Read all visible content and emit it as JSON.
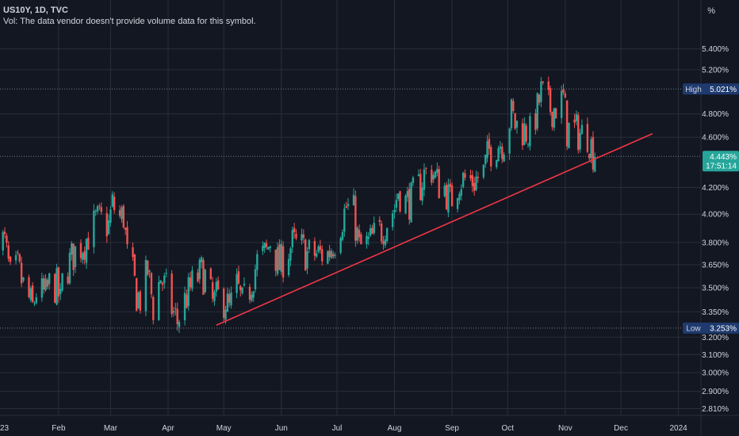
{
  "legend": {
    "symbol": "US10Y, 1D, TVC",
    "volume_note": "Vol: The data vendor doesn't provide volume data for this symbol."
  },
  "axis": {
    "unit": "%"
  },
  "colors": {
    "background": "#131722",
    "grid": "#2a2e39",
    "up": "#26a69a",
    "down": "#ef5350",
    "trendline": "#f23645",
    "badge_dark": "#1e3a6e",
    "badge_current": "#26a69a"
  },
  "chart_data": {
    "type": "candlestick",
    "symbol": "US10Y",
    "interval": "1D",
    "source": "TVC",
    "y_scale": "log",
    "ylim": [
      2.78,
      5.62
    ],
    "y_ticks": [
      "5.400%",
      "5.200%",
      "4.800%",
      "4.600%",
      "4.200%",
      "4.000%",
      "3.800%",
      "3.650%",
      "3.500%",
      "3.350%",
      "3.200%",
      "3.100%",
      "3.000%",
      "2.900%",
      "2.810%"
    ],
    "x_range": [
      "2022-12-28",
      "2024-01-08"
    ],
    "x_ticks": [
      {
        "label": "23",
        "date": "2022-12-30"
      },
      {
        "label": "Feb",
        "date": "2023-02-01"
      },
      {
        "label": "Mar",
        "date": "2023-03-01"
      },
      {
        "label": "Apr",
        "date": "2023-04-01"
      },
      {
        "label": "May",
        "date": "2023-05-01"
      },
      {
        "label": "Jun",
        "date": "2023-06-01"
      },
      {
        "label": "Jul",
        "date": "2023-07-01"
      },
      {
        "label": "Aug",
        "date": "2023-08-01"
      },
      {
        "label": "Sep",
        "date": "2023-09-01"
      },
      {
        "label": "Oct",
        "date": "2023-10-01"
      },
      {
        "label": "Nov",
        "date": "2023-11-01"
      },
      {
        "label": "Dec",
        "date": "2023-12-01"
      },
      {
        "label": "2024",
        "date": "2024-01-01"
      }
    ],
    "closes": [
      [
        "2022-12-30",
        3.88
      ],
      [
        "2023-01-03",
        3.79
      ],
      [
        "2023-01-06",
        3.56
      ],
      [
        "2023-01-10",
        3.62
      ],
      [
        "2023-01-13",
        3.51
      ],
      [
        "2023-01-18",
        3.37
      ],
      [
        "2023-01-20",
        3.48
      ],
      [
        "2023-01-25",
        3.45
      ],
      [
        "2023-01-27",
        3.52
      ],
      [
        "2023-01-31",
        3.51
      ],
      [
        "2023-02-02",
        3.4
      ],
      [
        "2023-02-03",
        3.53
      ],
      [
        "2023-02-07",
        3.67
      ],
      [
        "2023-02-10",
        3.74
      ],
      [
        "2023-02-15",
        3.8
      ],
      [
        "2023-02-21",
        3.95
      ],
      [
        "2023-02-24",
        3.95
      ],
      [
        "2023-02-28",
        3.92
      ],
      [
        "2023-03-02",
        4.07
      ],
      [
        "2023-03-06",
        3.97
      ],
      [
        "2023-03-08",
        3.99
      ],
      [
        "2023-03-10",
        3.7
      ],
      [
        "2023-03-13",
        3.58
      ],
      [
        "2023-03-15",
        3.46
      ],
      [
        "2023-03-17",
        3.43
      ],
      [
        "2023-03-21",
        3.61
      ],
      [
        "2023-03-24",
        3.38
      ],
      [
        "2023-03-28",
        3.57
      ],
      [
        "2023-03-31",
        3.48
      ],
      [
        "2023-04-04",
        3.34
      ],
      [
        "2023-04-06",
        3.29
      ],
      [
        "2023-04-10",
        3.42
      ],
      [
        "2023-04-14",
        3.52
      ],
      [
        "2023-04-19",
        3.6
      ],
      [
        "2023-04-21",
        3.57
      ],
      [
        "2023-04-25",
        3.4
      ],
      [
        "2023-04-28",
        3.44
      ],
      [
        "2023-05-02",
        3.42
      ],
      [
        "2023-05-04",
        3.36
      ],
      [
        "2023-05-08",
        3.51
      ],
      [
        "2023-05-11",
        3.39
      ],
      [
        "2023-05-15",
        3.5
      ],
      [
        "2023-05-19",
        3.67
      ],
      [
        "2023-05-24",
        3.73
      ],
      [
        "2023-05-26",
        3.81
      ],
      [
        "2023-05-31",
        3.64
      ],
      [
        "2023-06-02",
        3.69
      ],
      [
        "2023-06-07",
        3.79
      ],
      [
        "2023-06-12",
        3.76
      ],
      [
        "2023-06-15",
        3.72
      ],
      [
        "2023-06-21",
        3.72
      ],
      [
        "2023-06-26",
        3.72
      ],
      [
        "2023-06-30",
        3.82
      ],
      [
        "2023-07-06",
        4.05
      ],
      [
        "2023-07-10",
        4.01
      ],
      [
        "2023-07-13",
        3.76
      ],
      [
        "2023-07-18",
        3.79
      ],
      [
        "2023-07-21",
        3.84
      ],
      [
        "2023-07-25",
        3.89
      ],
      [
        "2023-07-28",
        3.95
      ],
      [
        "2023-08-01",
        4.05
      ],
      [
        "2023-08-03",
        4.18
      ],
      [
        "2023-08-07",
        4.09
      ],
      [
        "2023-08-10",
        4.11
      ],
      [
        "2023-08-15",
        4.22
      ],
      [
        "2023-08-17",
        4.3
      ],
      [
        "2023-08-21",
        4.34
      ],
      [
        "2023-08-24",
        4.24
      ],
      [
        "2023-08-28",
        4.2
      ],
      [
        "2023-08-31",
        4.09
      ],
      [
        "2023-09-05",
        4.26
      ],
      [
        "2023-09-08",
        4.26
      ],
      [
        "2023-09-13",
        4.25
      ],
      [
        "2023-09-18",
        4.32
      ],
      [
        "2023-09-21",
        4.49
      ],
      [
        "2023-09-26",
        4.55
      ],
      [
        "2023-09-29",
        4.57
      ],
      [
        "2023-10-03",
        4.8
      ],
      [
        "2023-10-05",
        4.71
      ],
      [
        "2023-10-10",
        4.66
      ],
      [
        "2023-10-13",
        4.63
      ],
      [
        "2023-10-17",
        4.84
      ],
      [
        "2023-10-19",
        4.99
      ],
      [
        "2023-10-23",
        4.85
      ],
      [
        "2023-10-26",
        4.85
      ],
      [
        "2023-10-31",
        4.93
      ],
      [
        "2023-11-02",
        4.67
      ],
      [
        "2023-11-06",
        4.66
      ],
      [
        "2023-11-09",
        4.63
      ],
      [
        "2023-11-13",
        4.63
      ],
      [
        "2023-11-15",
        4.53
      ],
      [
        "2023-11-17",
        4.44
      ]
    ],
    "high": {
      "label": "High",
      "value": "5.021%"
    },
    "low": {
      "label": "Low",
      "value": "3.253%"
    },
    "current": {
      "value": "4.443%",
      "countdown": "17:51:14"
    },
    "trendline": {
      "from": [
        "2023-04-27",
        3.27
      ],
      "to": [
        "2023-12-18",
        4.63
      ]
    }
  }
}
